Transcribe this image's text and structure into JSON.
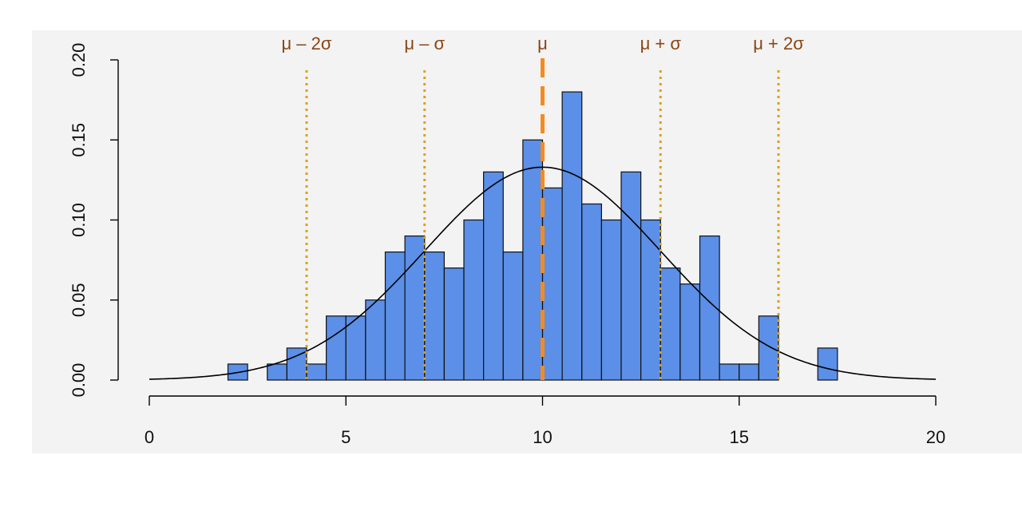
{
  "chart_data": {
    "type": "bar",
    "title": "",
    "xlabel": "",
    "ylabel": "",
    "xlim": [
      0,
      20
    ],
    "ylim": [
      0,
      0.2
    ],
    "x_ticks": [
      "0",
      "5",
      "10",
      "15",
      "20"
    ],
    "y_ticks": [
      "0.00",
      "0.05",
      "0.10",
      "0.15",
      "0.20"
    ],
    "grid": false,
    "bin_width": 0.5,
    "bins": [
      {
        "x0": 2.0,
        "height": 0.01
      },
      {
        "x0": 3.0,
        "height": 0.01
      },
      {
        "x0": 3.5,
        "height": 0.02
      },
      {
        "x0": 4.0,
        "height": 0.01
      },
      {
        "x0": 4.5,
        "height": 0.04
      },
      {
        "x0": 5.0,
        "height": 0.04
      },
      {
        "x0": 5.5,
        "height": 0.05
      },
      {
        "x0": 6.0,
        "height": 0.08
      },
      {
        "x0": 6.5,
        "height": 0.09
      },
      {
        "x0": 7.0,
        "height": 0.08
      },
      {
        "x0": 7.5,
        "height": 0.07
      },
      {
        "x0": 8.0,
        "height": 0.1
      },
      {
        "x0": 8.5,
        "height": 0.13
      },
      {
        "x0": 9.0,
        "height": 0.08
      },
      {
        "x0": 9.5,
        "height": 0.15
      },
      {
        "x0": 10.0,
        "height": 0.12
      },
      {
        "x0": 10.5,
        "height": 0.18
      },
      {
        "x0": 11.0,
        "height": 0.11
      },
      {
        "x0": 11.5,
        "height": 0.1
      },
      {
        "x0": 12.0,
        "height": 0.13
      },
      {
        "x0": 12.5,
        "height": 0.1
      },
      {
        "x0": 13.0,
        "height": 0.07
      },
      {
        "x0": 13.5,
        "height": 0.06
      },
      {
        "x0": 14.0,
        "height": 0.09
      },
      {
        "x0": 14.5,
        "height": 0.01
      },
      {
        "x0": 15.0,
        "height": 0.01
      },
      {
        "x0": 15.5,
        "height": 0.04
      },
      {
        "x0": 17.0,
        "height": 0.02
      }
    ],
    "density_curve": {
      "mean": 10,
      "sd": 3,
      "x_range": [
        0,
        20
      ]
    },
    "reference_lines": [
      {
        "x": 4,
        "label": "μ – 2σ",
        "style": "dotted",
        "color": "#d9a21b"
      },
      {
        "x": 7,
        "label": "μ – σ",
        "style": "dotted",
        "color": "#d9a21b"
      },
      {
        "x": 10,
        "label": "μ",
        "style": "dashed",
        "color": "#f58a1f"
      },
      {
        "x": 13,
        "label": "μ + σ",
        "style": "dotted",
        "color": "#d9a21b"
      },
      {
        "x": 16,
        "label": "μ + 2σ",
        "style": "dotted",
        "color": "#d9a21b"
      }
    ],
    "colors": {
      "bar_fill": "#5b8fe8",
      "bar_stroke": "#111111",
      "curve": "#000000",
      "label_text": "#8b4513",
      "background": "#f3f3f3"
    }
  }
}
